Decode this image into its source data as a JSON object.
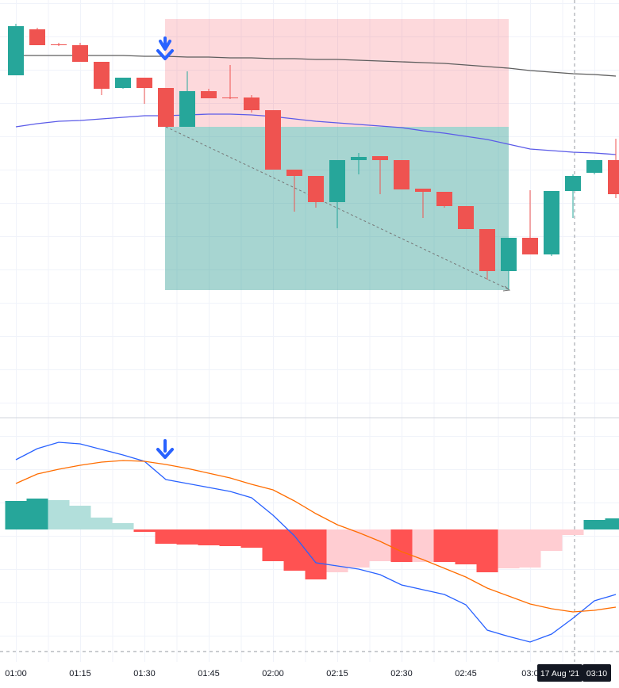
{
  "chart_data": [
    {
      "type": "candlestick",
      "categories": [
        "01:00",
        null,
        null,
        "01:15",
        null,
        null,
        "01:30",
        null,
        null,
        "01:45",
        null,
        null,
        "02:00",
        null,
        null,
        "02:15",
        null,
        null,
        "02:30",
        null,
        null,
        "02:45",
        null,
        null,
        "03:0",
        null,
        null,
        null,
        null
      ],
      "open": [
        425,
        483,
        464,
        463,
        442,
        409,
        422,
        409,
        360,
        405,
        397,
        397,
        381,
        306,
        298,
        265,
        318,
        323,
        318,
        282,
        278,
        260,
        231,
        178,
        220,
        199,
        279,
        302,
        318
      ],
      "high": [
        490,
        485,
        466,
        466,
        442,
        422,
        422,
        409,
        430,
        408,
        438,
        400,
        381,
        306,
        298,
        318,
        327,
        323,
        318,
        282,
        278,
        260,
        231,
        220,
        280,
        279,
        300,
        318,
        345
      ],
      "low": [
        425,
        463,
        462,
        442,
        400,
        408,
        389,
        360,
        360,
        396,
        395,
        378,
        306,
        253,
        258,
        232,
        300,
        275,
        281,
        245,
        258,
        231,
        167,
        155,
        199,
        197,
        245,
        300,
        270
      ],
      "close": [
        487,
        463,
        463,
        442,
        408,
        422,
        409,
        360,
        405,
        396,
        396,
        381,
        306,
        298,
        265,
        318,
        322,
        318,
        281,
        278,
        260,
        231,
        178,
        220,
        199,
        279,
        298,
        318,
        275
      ],
      "up_color": "#26a69a",
      "down_color": "#ef5350",
      "lines": [
        {
          "color": "#5d5d5d",
          "values": [
            450,
            450,
            450,
            450,
            450,
            450,
            449,
            449,
            448,
            448,
            447,
            447,
            446,
            446,
            445,
            445,
            444,
            443,
            442,
            441,
            440,
            438,
            436,
            434,
            431,
            429,
            427,
            426,
            424
          ]
        },
        {
          "color": "#5b5be8",
          "values": [
            360,
            364,
            367,
            368,
            370,
            372,
            374,
            374,
            375,
            376,
            376,
            375,
            373,
            370,
            367,
            365,
            363,
            361,
            359,
            355,
            352,
            348,
            344,
            338,
            332,
            330,
            328,
            327,
            325
          ]
        }
      ],
      "ylim": [
        0,
        520
      ],
      "crosshair": {
        "date": "17 Aug '21",
        "time": "03:10"
      }
    },
    {
      "type": "macd",
      "histogram": {
        "values": [
          36,
          39,
          37,
          30,
          15,
          8,
          -3,
          -18,
          -19,
          -20,
          -21,
          -23,
          -40,
          -52,
          -63,
          -54,
          -48,
          -40,
          -41,
          -41,
          -41,
          -44,
          -54,
          -49,
          -48,
          -27,
          -7,
          12,
          14
        ],
        "colors": [
          "#26a69a",
          "#26a69a",
          "#b2dfdb",
          "#b2dfdb",
          "#b2dfdb",
          "#b2dfdb",
          "#ff5252",
          "#ff5252",
          "#ff5252",
          "#ff5252",
          "#ff5252",
          "#ff5252",
          "#ff5252",
          "#ff5252",
          "#ff5252",
          "#ffcdd2",
          "#ffcdd2",
          "#ffcdd2",
          "#ff5252",
          "#ffcdd2",
          "#ff5252",
          "#ff5252",
          "#ff5252",
          "#ffcdd2",
          "#ffcdd2",
          "#ffcdd2",
          "#ffcdd2",
          "#26a69a",
          "#26a69a"
        ]
      },
      "lines": [
        {
          "color": "#2962ff",
          "values": [
            88,
            102,
            110,
            108,
            101,
            94,
            86,
            63,
            58,
            53,
            48,
            40,
            18,
            -8,
            -42,
            -46,
            -50,
            -57,
            -70,
            -76,
            -82,
            -95,
            -127,
            -135,
            -142,
            -132,
            -112,
            -90,
            -82
          ]
        },
        {
          "color": "#ff6d00",
          "values": [
            58,
            70,
            76,
            81,
            85,
            87,
            86,
            82,
            77,
            71,
            65,
            57,
            50,
            36,
            20,
            6,
            -4,
            -15,
            -28,
            -38,
            -49,
            -60,
            -74,
            -84,
            -94,
            -100,
            -104,
            -102,
            -98
          ]
        }
      ],
      "ylim": [
        -167,
        140
      ]
    }
  ]
}
